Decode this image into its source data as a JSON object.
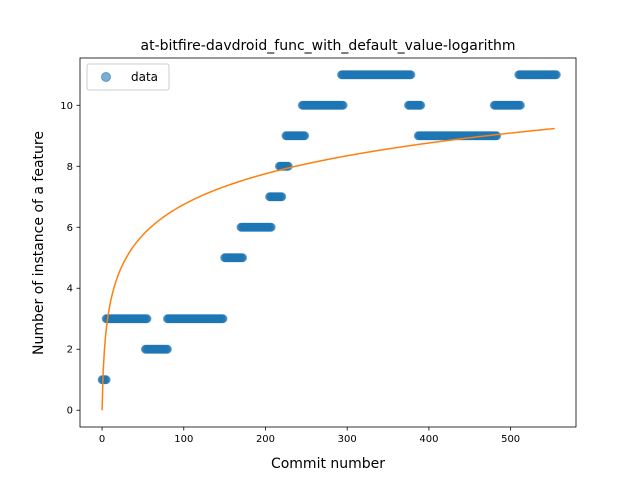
{
  "chart_data": {
    "type": "scatter",
    "title": "at-bitfire-davdroid_func_with_default_value-logarithm",
    "xlabel": "Commit number",
    "ylabel": "Number of instance of a feature",
    "xlim": [
      -27,
      580
    ],
    "ylim": [
      -0.55,
      11.55
    ],
    "xticks": [
      0,
      100,
      200,
      300,
      400,
      500
    ],
    "yticks": [
      0,
      2,
      4,
      6,
      8,
      10
    ],
    "grid": false,
    "legend": {
      "location": "upper-left",
      "entries": [
        "data"
      ]
    },
    "colors": {
      "data": "#1f77b4",
      "fit": "#ff7f0e"
    },
    "series": [
      {
        "name": "data",
        "kind": "scatter",
        "segments": [
          {
            "x_start": 0,
            "x_end": 5,
            "y": 1
          },
          {
            "x_start": 5,
            "x_end": 55,
            "y": 3
          },
          {
            "x_start": 53,
            "x_end": 80,
            "y": 2
          },
          {
            "x_start": 80,
            "x_end": 148,
            "y": 3
          },
          {
            "x_start": 150,
            "x_end": 172,
            "y": 5
          },
          {
            "x_start": 170,
            "x_end": 207,
            "y": 6
          },
          {
            "x_start": 205,
            "x_end": 220,
            "y": 7
          },
          {
            "x_start": 217,
            "x_end": 228,
            "y": 8
          },
          {
            "x_start": 225,
            "x_end": 248,
            "y": 9
          },
          {
            "x_start": 245,
            "x_end": 295,
            "y": 10
          },
          {
            "x_start": 293,
            "x_end": 378,
            "y": 11
          },
          {
            "x_start": 375,
            "x_end": 390,
            "y": 10
          },
          {
            "x_start": 387,
            "x_end": 483,
            "y": 9
          },
          {
            "x_start": 480,
            "x_end": 512,
            "y": 10
          },
          {
            "x_start": 510,
            "x_end": 556,
            "y": 11
          }
        ]
      },
      {
        "name": "",
        "kind": "line",
        "model": "logarithm",
        "x_range": [
          0,
          554
        ],
        "a": 1.462,
        "b": 1.0
      }
    ]
  }
}
